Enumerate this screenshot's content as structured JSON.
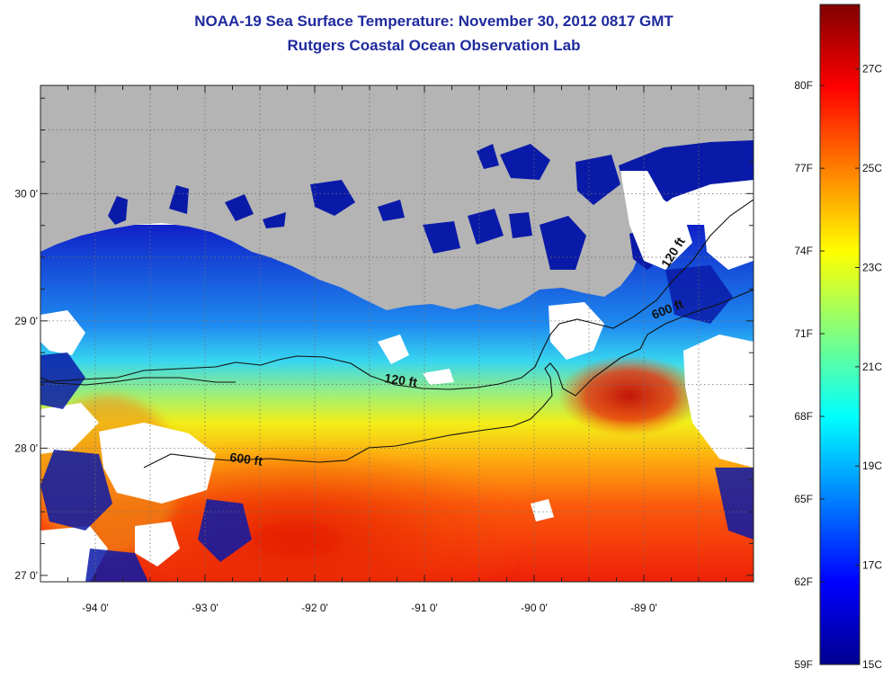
{
  "title_line1": "NOAA-19 Sea Surface Temperature:  November 30, 2012 0817 GMT",
  "title_line2": "Rutgers Coastal Ocean Observation Lab",
  "map": {
    "lat_ticks": [
      {
        "value": 30,
        "label": "30 0'"
      },
      {
        "value": 29,
        "label": "29 0'"
      },
      {
        "value": 28,
        "label": "28 0'"
      },
      {
        "value": 27,
        "label": "27 0'"
      }
    ],
    "lon_ticks": [
      {
        "value": -94,
        "label": "-94 0'"
      },
      {
        "value": -93,
        "label": "-93 0'"
      },
      {
        "value": -92,
        "label": "-92 0'"
      },
      {
        "value": -91,
        "label": "-91 0'"
      },
      {
        "value": -90,
        "label": "-90 0'"
      },
      {
        "value": -89,
        "label": "-89 0'"
      }
    ],
    "lat_range": [
      26.95,
      30.85
    ],
    "lon_range": [
      -94.5,
      -88.0
    ],
    "contour_labels": [
      {
        "text": "120 ft",
        "lon": -91.22,
        "lat": 28.5,
        "angle": 8
      },
      {
        "text": "600 ft",
        "lon": -92.63,
        "lat": 27.88,
        "angle": 8
      },
      {
        "text": "120 ft",
        "lon": -88.7,
        "lat": 29.52,
        "angle": -58
      },
      {
        "text": "600 ft",
        "lon": -88.77,
        "lat": 29.06,
        "angle": -22
      }
    ],
    "colors": {
      "land": "#b4b4b4",
      "cloud": "#ffffff",
      "contour": "#111111"
    }
  },
  "colorbar": {
    "fahrenheit_labels": [
      "80F",
      "77F",
      "74F",
      "71F",
      "68F",
      "65F",
      "62F",
      "59F"
    ],
    "fahrenheit_values": [
      80,
      77,
      74,
      71,
      68,
      65,
      62,
      59
    ],
    "celsius_labels": [
      "27C",
      "25C",
      "23C",
      "21C",
      "19C",
      "17C",
      "15C"
    ],
    "celsius_values": [
      27,
      25,
      23,
      21,
      19,
      17,
      15
    ],
    "range_c": [
      15,
      28.3
    ],
    "colormap": [
      "#00008f",
      "#0000ff",
      "#0080ff",
      "#00ffff",
      "#80ff80",
      "#ffff00",
      "#ff8000",
      "#ff0000",
      "#800000"
    ]
  }
}
